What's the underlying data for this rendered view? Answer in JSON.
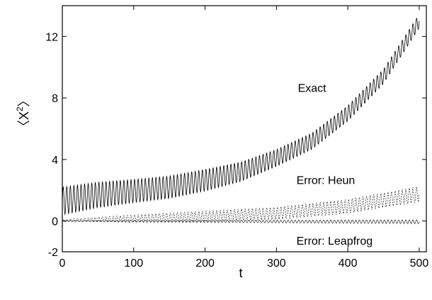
{
  "chart_data": {
    "type": "line",
    "title": "",
    "xlabel": "t",
    "ylabel_parts": {
      "open": "〈",
      "base": "X",
      "exponent": "2",
      "close": "〉"
    },
    "xlim": [
      0,
      510
    ],
    "ylim": [
      -2,
      14
    ],
    "xticks": [
      0,
      100,
      200,
      300,
      400,
      500
    ],
    "yticks": [
      -2,
      0,
      4,
      8,
      12
    ],
    "grid": false,
    "legend": "none",
    "series": [
      {
        "key": "exact",
        "center": [
          [
            0,
            1.3
          ],
          [
            50,
            1.7
          ],
          [
            100,
            1.95
          ],
          [
            150,
            2.2
          ],
          [
            200,
            2.65
          ],
          [
            250,
            3.2
          ],
          [
            300,
            4.1
          ],
          [
            350,
            5.2
          ],
          [
            400,
            7.0
          ],
          [
            450,
            9.4
          ],
          [
            500,
            13.0
          ]
        ],
        "amplitude": [
          [
            0,
            0.9
          ],
          [
            100,
            0.75
          ],
          [
            200,
            0.7
          ],
          [
            300,
            0.55
          ],
          [
            400,
            0.5
          ],
          [
            500,
            0.45
          ]
        ],
        "period": 5
      },
      {
        "key": "heun",
        "center": [
          [
            0,
            0.05
          ],
          [
            100,
            0.15
          ],
          [
            200,
            0.3
          ],
          [
            300,
            0.5
          ],
          [
            400,
            0.95
          ],
          [
            500,
            1.75
          ]
        ],
        "amplitude": [
          [
            0,
            0.05
          ],
          [
            100,
            0.25
          ],
          [
            200,
            0.35
          ],
          [
            300,
            0.4
          ],
          [
            400,
            0.45
          ],
          [
            500,
            0.5
          ]
        ],
        "period": 5
      },
      {
        "key": "leapfrog",
        "center": [
          [
            0,
            0.0
          ],
          [
            500,
            -0.05
          ]
        ],
        "amplitude": [
          [
            0,
            0.03
          ],
          [
            250,
            0.08
          ],
          [
            500,
            0.13
          ]
        ],
        "period": 5
      }
    ],
    "annotations": [
      {
        "key": "exact",
        "text": "Exact",
        "x": 330,
        "y": 8.4
      },
      {
        "key": "heun",
        "text": "Error: Heun",
        "x": 328,
        "y": 2.4
      },
      {
        "key": "leapfrog",
        "text": "Error: Leapfrog",
        "x": 328,
        "y": -1.55
      }
    ]
  }
}
